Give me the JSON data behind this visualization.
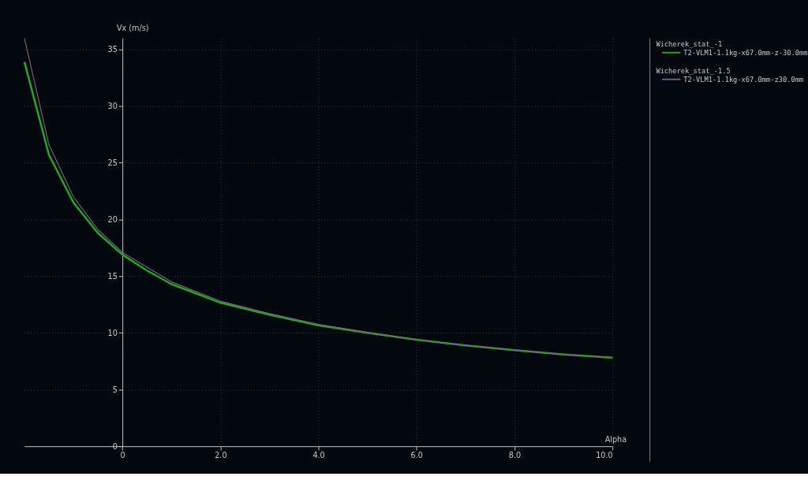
{
  "chart_data": {
    "type": "line",
    "xlabel": "Alpha",
    "ylabel": "Vx (m/s)",
    "x": [
      -2,
      -1.5,
      -1,
      -0.5,
      0,
      0.5,
      1,
      2,
      3,
      4,
      5,
      6,
      7,
      8,
      9,
      10
    ],
    "series": [
      {
        "name": "T2-VLM1-1.1kg-x67.0mm-z-30.0mm",
        "color": "#22a822",
        "values": [
          33.9,
          25.7,
          21.5,
          18.8,
          16.9,
          15.5,
          14.3,
          12.66,
          11.6,
          10.67,
          10.0,
          9.4,
          8.9,
          8.47,
          8.1,
          7.81
        ]
      },
      {
        "name": "T2-VLM1-1.1kg-x67.0mm-z30.0mm",
        "color": "#7e5e80",
        "values": [
          36.0,
          26.6,
          22.0,
          19.1,
          17.1,
          15.8,
          14.5,
          12.8,
          11.7,
          10.75,
          10.05,
          9.4,
          8.9,
          8.47,
          8.1,
          7.81
        ]
      }
    ],
    "annotations": [
      "Wicherek_stat_-1",
      "Wicherek_stat_-1.5"
    ],
    "xlim": [
      -2,
      10
    ],
    "ylim": [
      0,
      36
    ],
    "xticks": [
      0,
      {
        "value": 2,
        "label": "2.0"
      },
      {
        "value": 4,
        "label": "4.0"
      },
      {
        "value": 6,
        "label": "6.0"
      },
      {
        "value": 8,
        "label": "8.0"
      },
      {
        "value": 10,
        "label": "10.0"
      }
    ],
    "yticks": [
      0,
      5,
      10,
      15,
      20,
      25,
      30,
      35
    ],
    "grid": true,
    "legend": "right",
    "marker": "none",
    "line_style": "solid"
  }
}
